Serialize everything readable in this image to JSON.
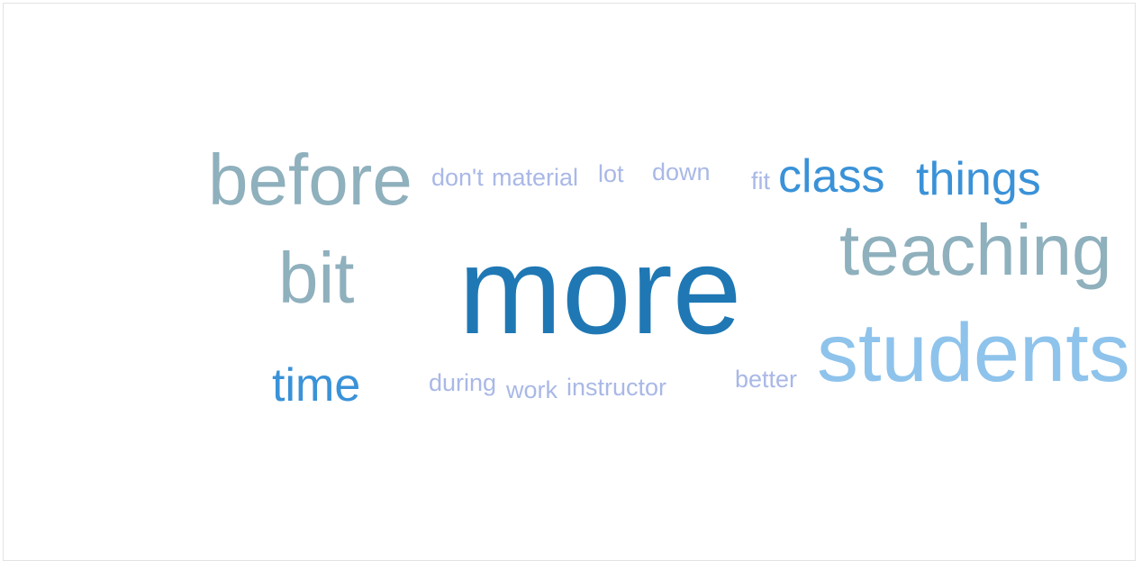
{
  "words": [
    {
      "key": "more",
      "text": "more",
      "color": "#1f78b4"
    },
    {
      "key": "before",
      "text": "before",
      "color": "#8fb0bd"
    },
    {
      "key": "bit",
      "text": "bit",
      "color": "#8fb0bd"
    },
    {
      "key": "teaching",
      "text": "teaching",
      "color": "#8fb0bd"
    },
    {
      "key": "students",
      "text": "students",
      "color": "#8ec3ec"
    },
    {
      "key": "class",
      "text": "class",
      "color": "#3a92d8"
    },
    {
      "key": "things",
      "text": "things",
      "color": "#3a92d8"
    },
    {
      "key": "time",
      "text": "time",
      "color": "#3a92d8"
    },
    {
      "key": "dont",
      "text": "don't",
      "color": "#a9b8e6"
    },
    {
      "key": "material",
      "text": "material",
      "color": "#a9b8e6"
    },
    {
      "key": "lot",
      "text": "lot",
      "color": "#a9b8e6"
    },
    {
      "key": "down",
      "text": "down",
      "color": "#a9b8e6"
    },
    {
      "key": "fit",
      "text": "fit",
      "color": "#a9b8e6"
    },
    {
      "key": "during",
      "text": "during",
      "color": "#a9b8e6"
    },
    {
      "key": "work",
      "text": "work",
      "color": "#a9b8e6"
    },
    {
      "key": "instructor",
      "text": "instructor",
      "color": "#a9b8e6"
    },
    {
      "key": "better",
      "text": "better",
      "color": "#a9b8e6"
    }
  ]
}
